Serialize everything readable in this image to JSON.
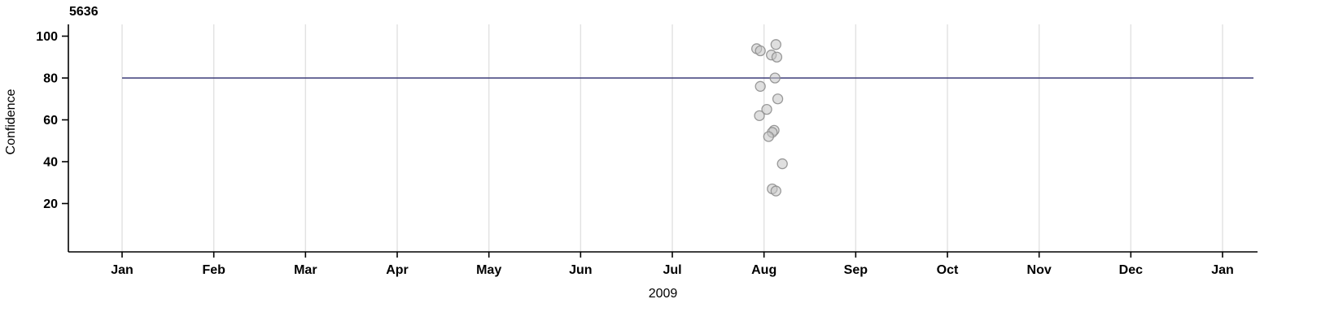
{
  "chart_data": {
    "type": "scatter",
    "title": "5636",
    "xlabel": "2009",
    "ylabel": "Confidence",
    "x_tick_labels": [
      "Jan",
      "Feb",
      "Mar",
      "Apr",
      "May",
      "Jun",
      "Jul",
      "Aug",
      "Sep",
      "Oct",
      "Nov",
      "Dec",
      "Jan"
    ],
    "x_range_months": [
      0,
      12
    ],
    "yticks": [
      20,
      40,
      60,
      80,
      100
    ],
    "ylim": [
      -3,
      105
    ],
    "grid": "vertical-only",
    "legend": "none",
    "threshold_line": {
      "y": 80,
      "color": "#3c3c78"
    },
    "points": [
      {
        "x": 6.92,
        "y": 94
      },
      {
        "x": 6.96,
        "y": 93
      },
      {
        "x": 7.13,
        "y": 96
      },
      {
        "x": 7.08,
        "y": 91
      },
      {
        "x": 7.14,
        "y": 90
      },
      {
        "x": 7.12,
        "y": 80
      },
      {
        "x": 6.96,
        "y": 76
      },
      {
        "x": 7.15,
        "y": 70
      },
      {
        "x": 7.03,
        "y": 65
      },
      {
        "x": 6.95,
        "y": 62
      },
      {
        "x": 7.11,
        "y": 55
      },
      {
        "x": 7.09,
        "y": 54
      },
      {
        "x": 7.05,
        "y": 52
      },
      {
        "x": 7.2,
        "y": 39
      },
      {
        "x": 7.09,
        "y": 27
      },
      {
        "x": 7.13,
        "y": 26
      }
    ],
    "colors": {
      "point_fill": "#c4c4c4",
      "point_stroke": "#8f8f8f",
      "grid": "#e2e2e2",
      "axis": "#000000",
      "text": "#000000"
    }
  }
}
